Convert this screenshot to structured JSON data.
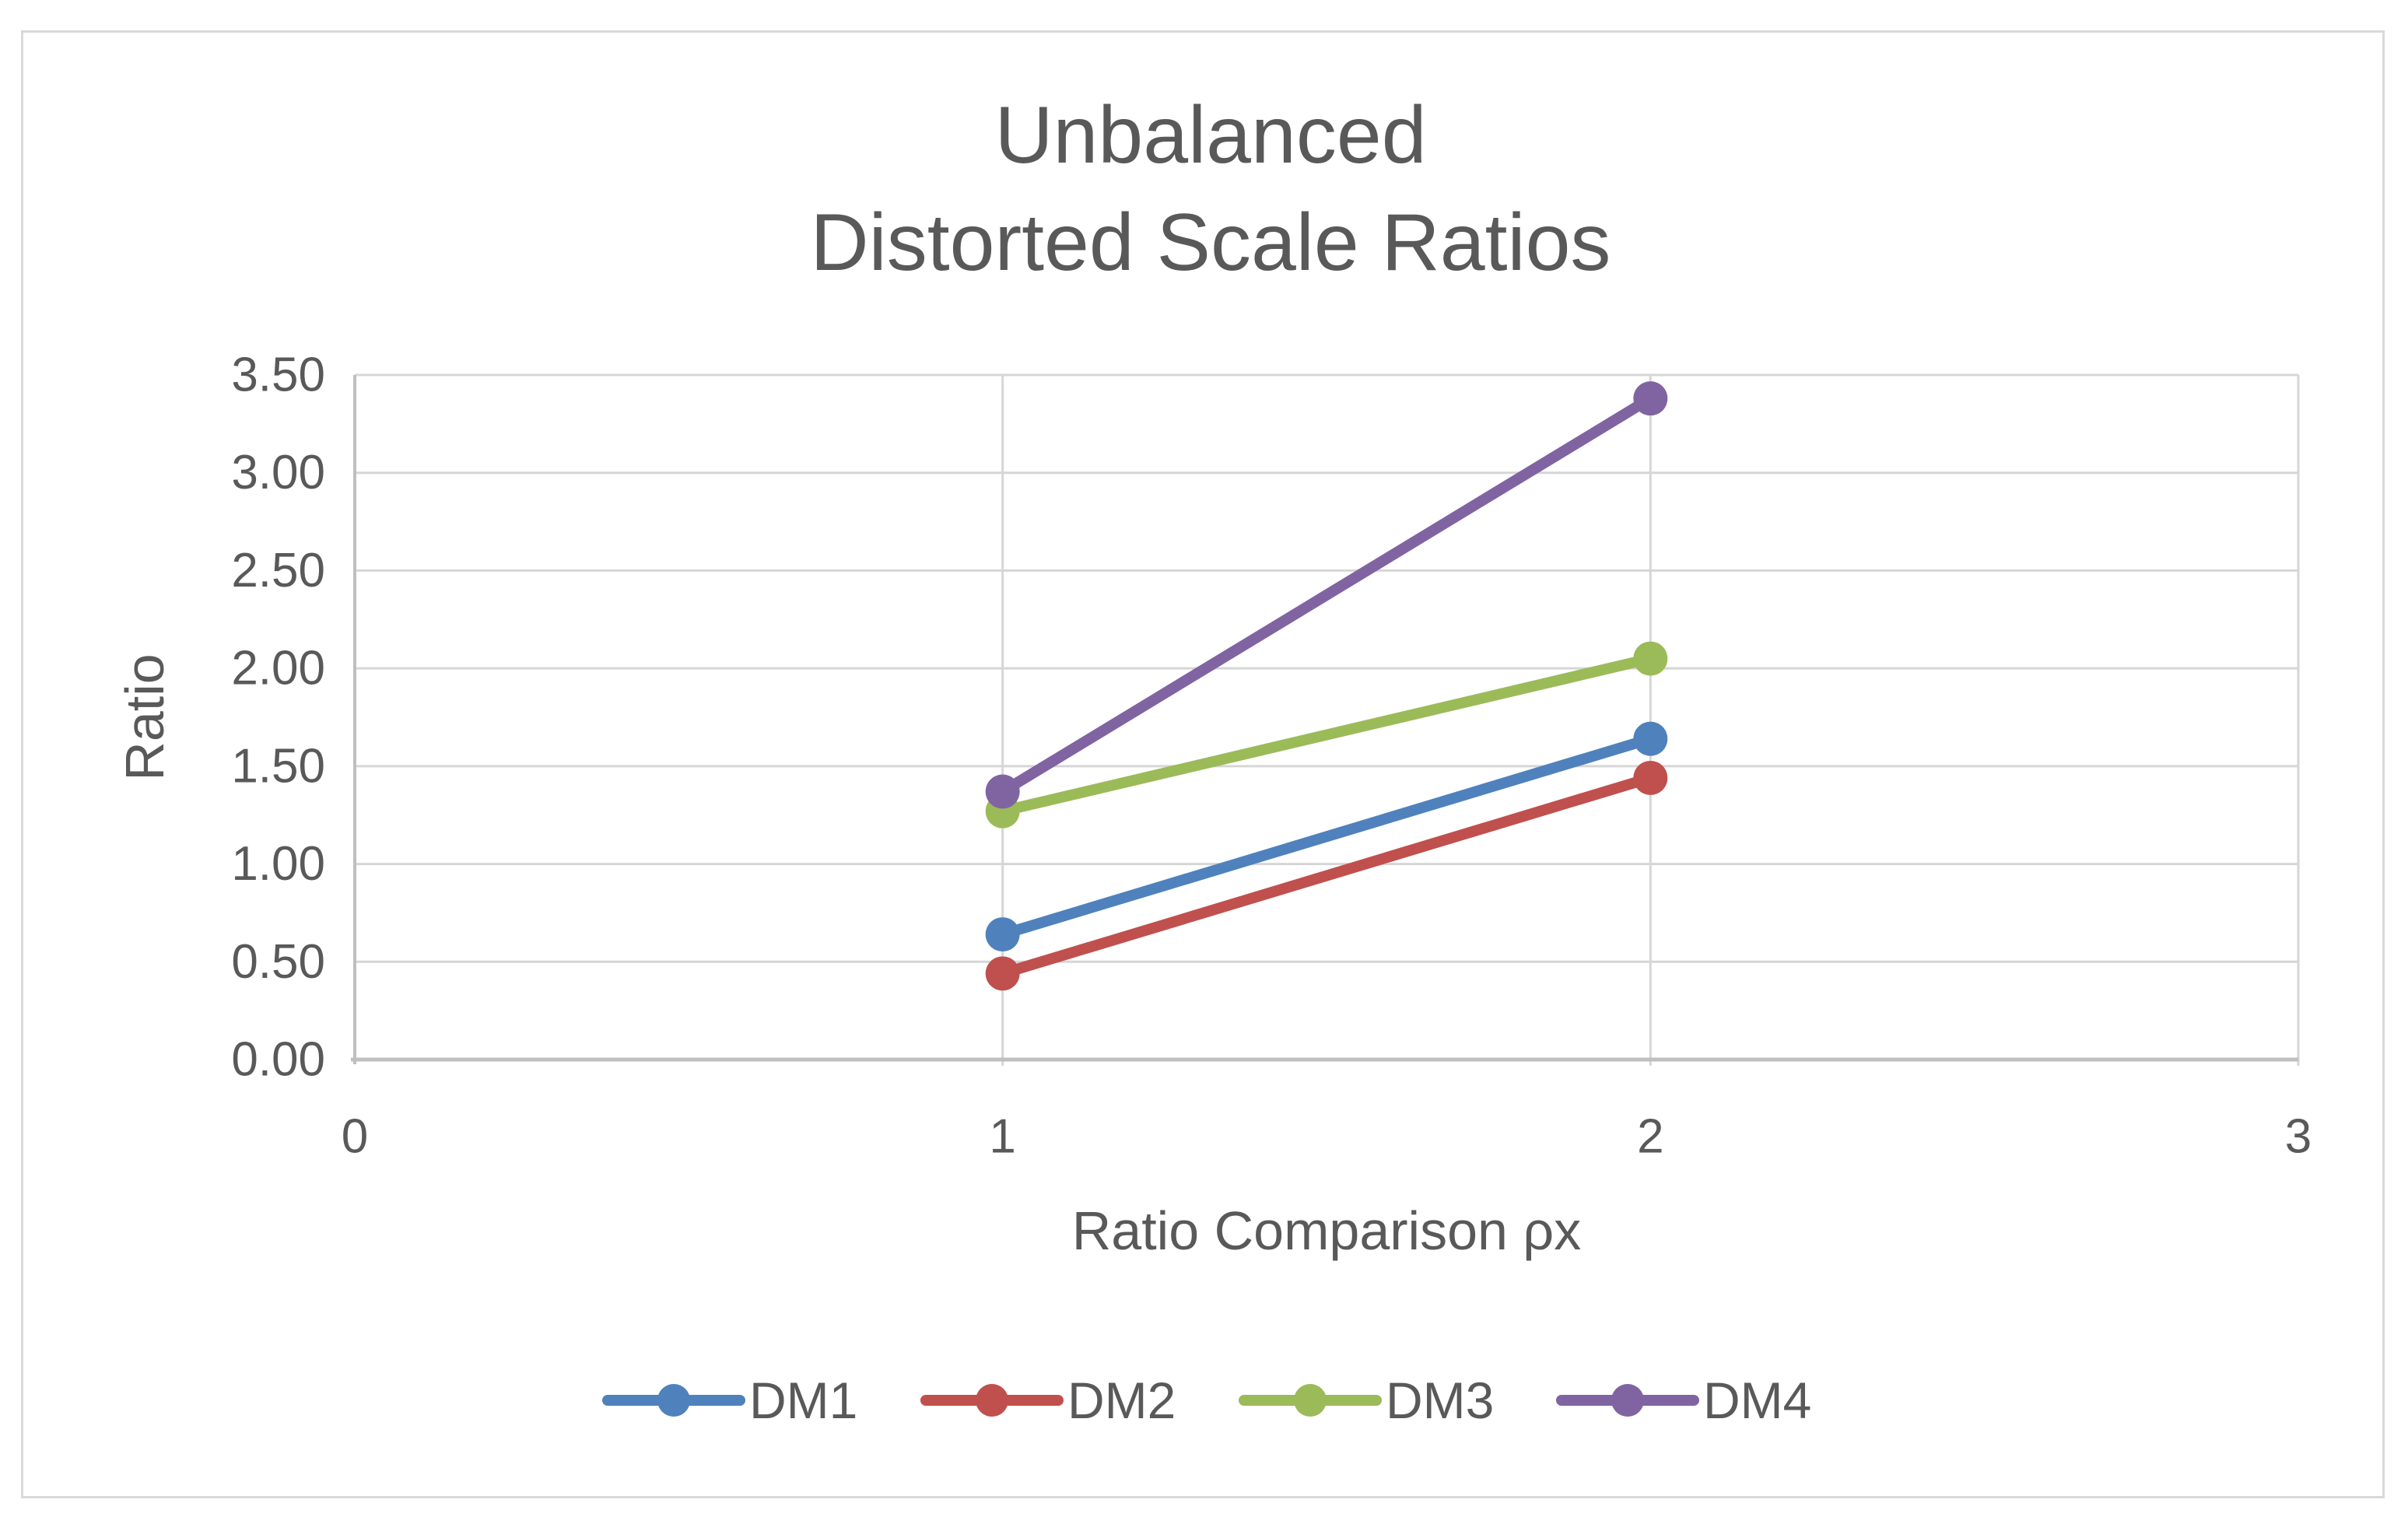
{
  "chart_data": {
    "type": "line",
    "title_lines": [
      "Unbalanced",
      "Distorted Scale Ratios"
    ],
    "xlabel": "Ratio Comparison ρx",
    "ylabel": "Ratio",
    "x": [
      1,
      2
    ],
    "series": [
      {
        "name": "DM1",
        "color": "#4F81BD",
        "values": [
          0.64,
          1.64
        ]
      },
      {
        "name": "DM2",
        "color": "#C0504D",
        "values": [
          0.44,
          1.44
        ]
      },
      {
        "name": "DM3",
        "color": "#9BBB59",
        "values": [
          1.27,
          2.05
        ]
      },
      {
        "name": "DM4",
        "color": "#8064A2",
        "values": [
          1.37,
          3.38
        ]
      }
    ],
    "xlim": [
      0,
      3
    ],
    "ylim": [
      0,
      3.5
    ],
    "x_ticks": [
      0,
      1,
      2,
      3
    ],
    "x_tick_labels": [
      "0",
      "1",
      "2",
      "3"
    ],
    "y_ticks": [
      0,
      0.5,
      1,
      1.5,
      2,
      2.5,
      3,
      3.5
    ],
    "y_tick_labels": [
      "0.00",
      "0.50",
      "1.00",
      "1.50",
      "2.00",
      "2.50",
      "3.00",
      "3.50"
    ],
    "grid": {
      "horizontal": true,
      "vertical": true
    },
    "legend_position": "bottom",
    "marker": "circle"
  },
  "styles": {
    "text_color": "#595959",
    "gridline_color": "#D6D6D6",
    "axis_color": "#BFBFBF",
    "border_color": "#D9D9D9",
    "background": "#FFFFFF"
  }
}
